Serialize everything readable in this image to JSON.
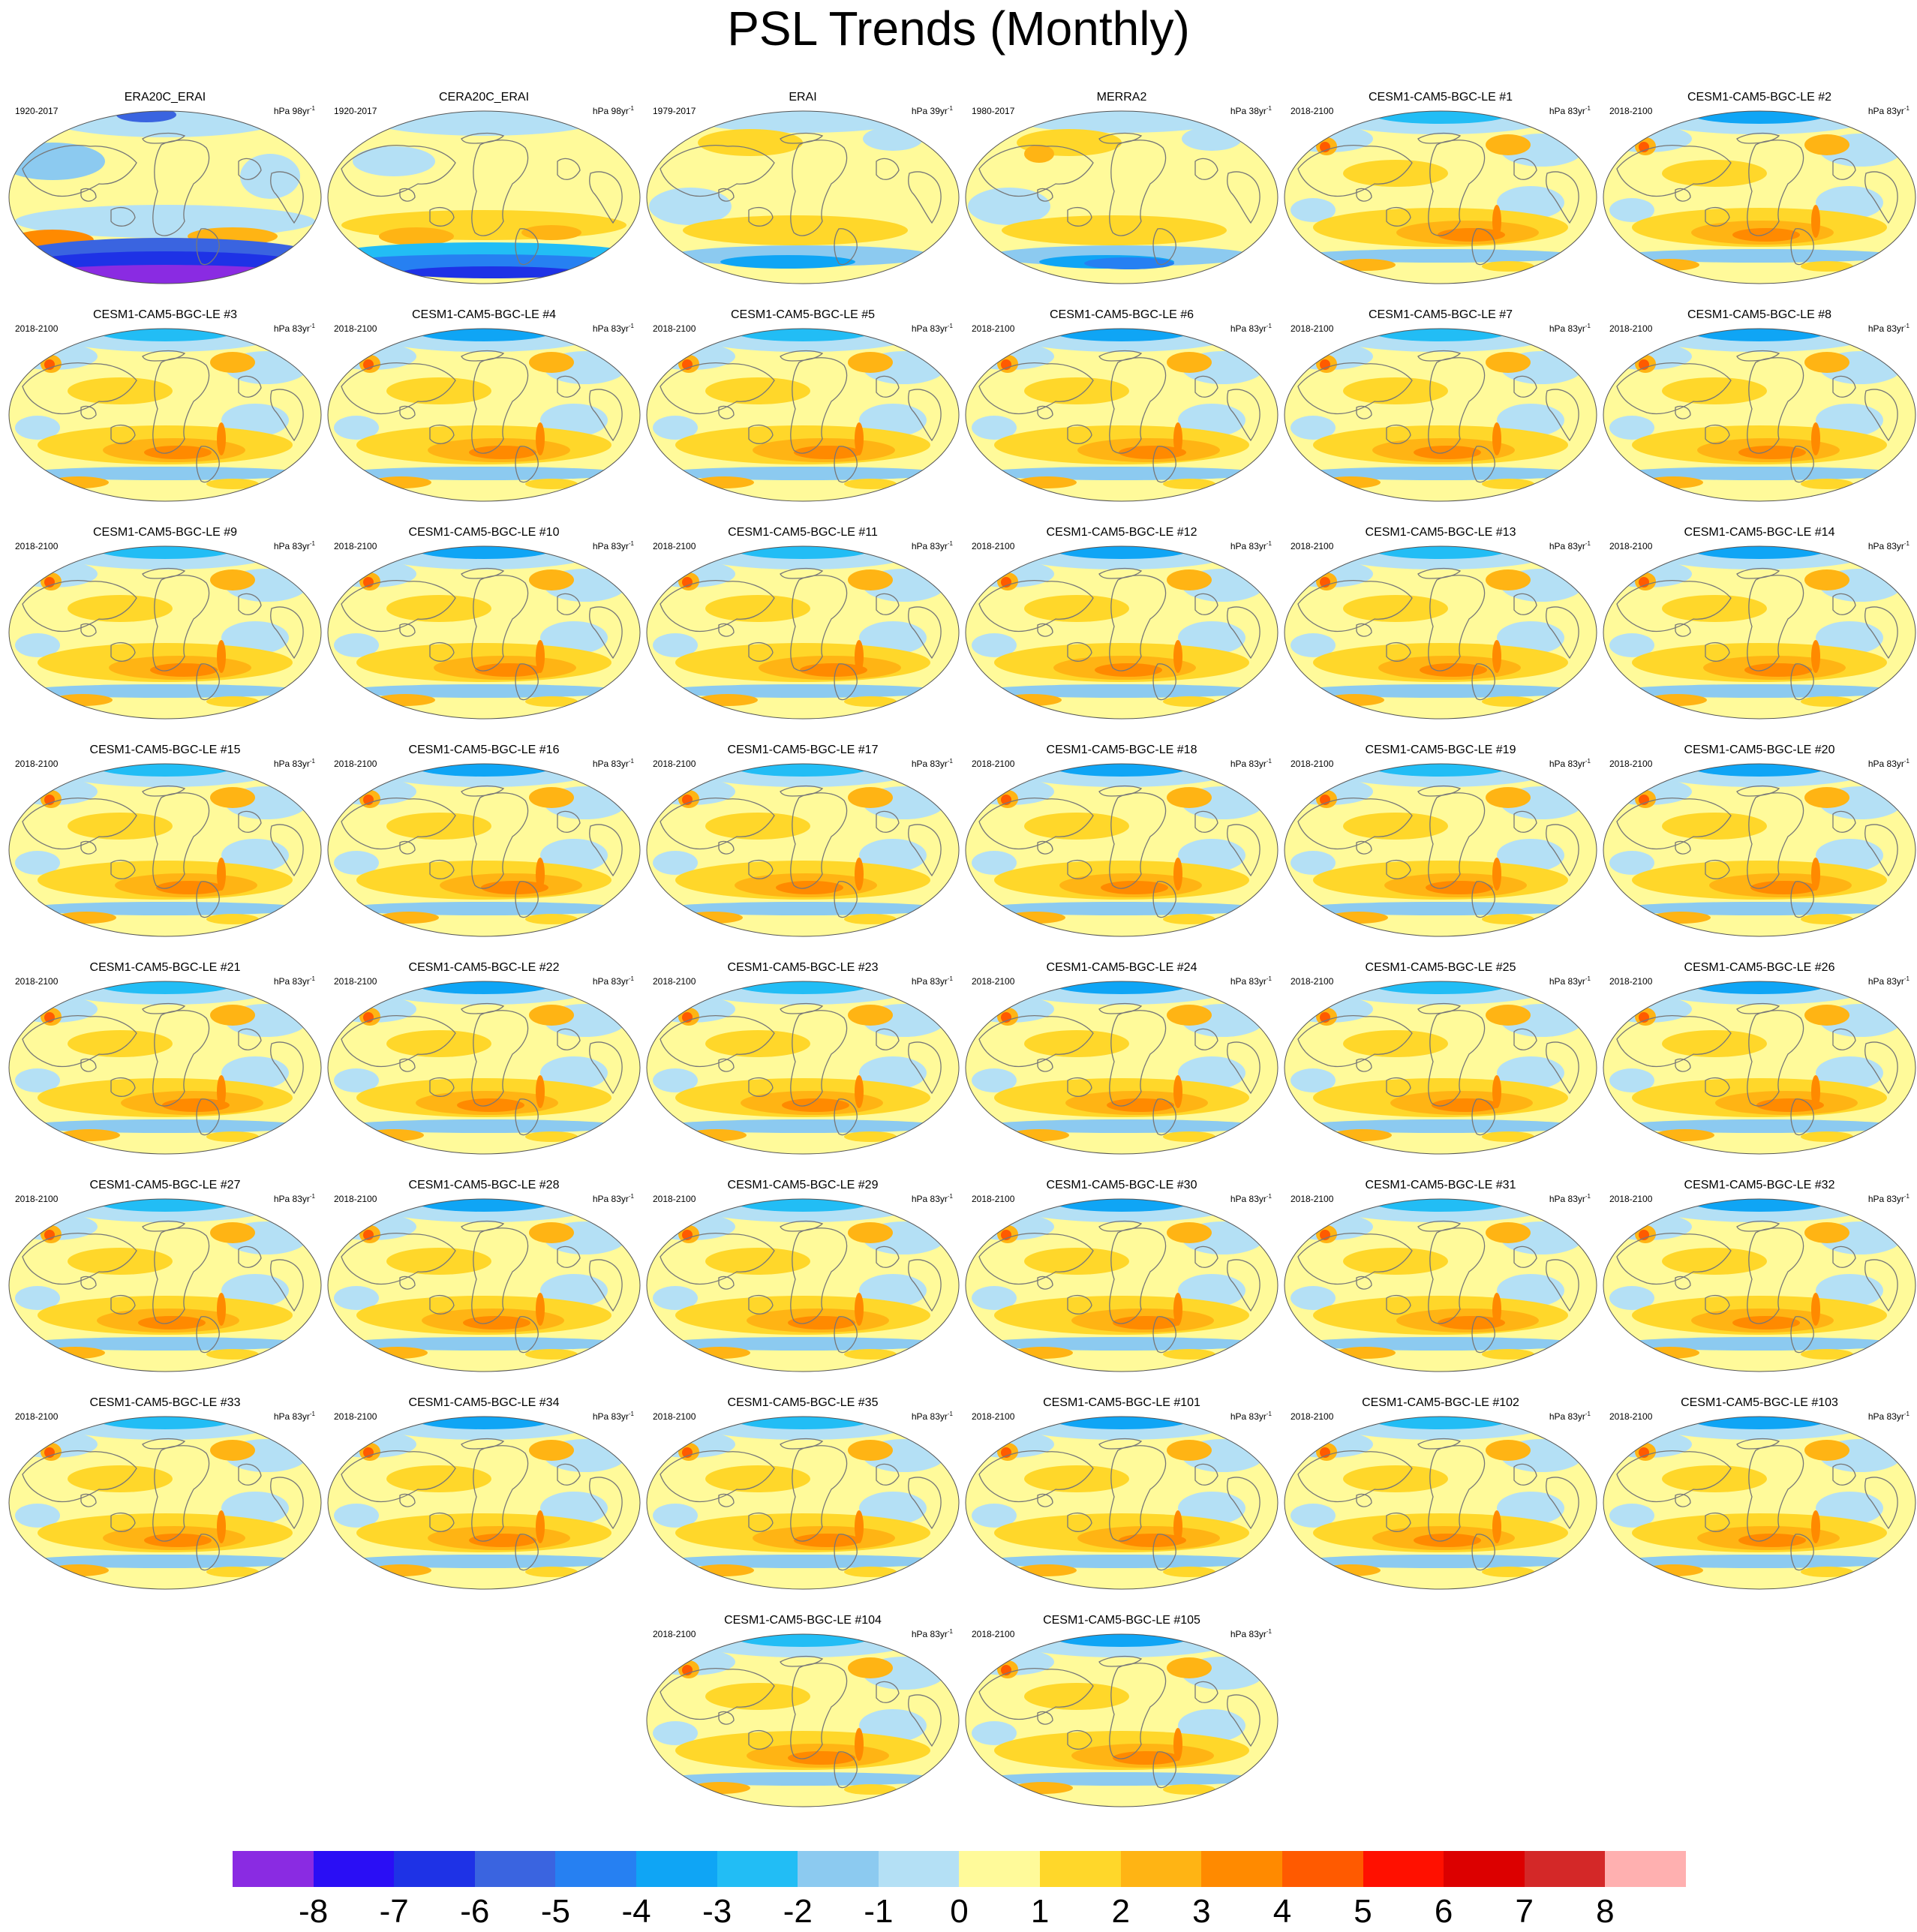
{
  "title": "PSL Trends (Monthly)",
  "panels": [
    {
      "title": "ERA20C_ERAI",
      "period": "1920-2017",
      "units": "hPa 98yr",
      "units_exp": "-1",
      "pattern": "era20c"
    },
    {
      "title": "CERA20C_ERAI",
      "period": "1920-2017",
      "units": "hPa 98yr",
      "units_exp": "-1",
      "pattern": "cera20c"
    },
    {
      "title": "ERAI",
      "period": "1979-2017",
      "units": "hPa 39yr",
      "units_exp": "-1",
      "pattern": "obs"
    },
    {
      "title": "MERRA2",
      "period": "1980-2017",
      "units": "hPa 38yr",
      "units_exp": "-1",
      "pattern": "obs"
    },
    {
      "title": "CESM1-CAM5-BGC-LE #1",
      "period": "2018-2100",
      "units": "hPa 83yr",
      "units_exp": "-1",
      "pattern": "model"
    },
    {
      "title": "CESM1-CAM5-BGC-LE #2",
      "period": "2018-2100",
      "units": "hPa 83yr",
      "units_exp": "-1",
      "pattern": "model"
    },
    {
      "title": "CESM1-CAM5-BGC-LE #3",
      "period": "2018-2100",
      "units": "hPa 83yr",
      "units_exp": "-1",
      "pattern": "model"
    },
    {
      "title": "CESM1-CAM5-BGC-LE #4",
      "period": "2018-2100",
      "units": "hPa 83yr",
      "units_exp": "-1",
      "pattern": "model"
    },
    {
      "title": "CESM1-CAM5-BGC-LE #5",
      "period": "2018-2100",
      "units": "hPa 83yr",
      "units_exp": "-1",
      "pattern": "model"
    },
    {
      "title": "CESM1-CAM5-BGC-LE #6",
      "period": "2018-2100",
      "units": "hPa 83yr",
      "units_exp": "-1",
      "pattern": "model"
    },
    {
      "title": "CESM1-CAM5-BGC-LE #7",
      "period": "2018-2100",
      "units": "hPa 83yr",
      "units_exp": "-1",
      "pattern": "model"
    },
    {
      "title": "CESM1-CAM5-BGC-LE #8",
      "period": "2018-2100",
      "units": "hPa 83yr",
      "units_exp": "-1",
      "pattern": "model"
    },
    {
      "title": "CESM1-CAM5-BGC-LE #9",
      "period": "2018-2100",
      "units": "hPa 83yr",
      "units_exp": "-1",
      "pattern": "model"
    },
    {
      "title": "CESM1-CAM5-BGC-LE #10",
      "period": "2018-2100",
      "units": "hPa 83yr",
      "units_exp": "-1",
      "pattern": "model"
    },
    {
      "title": "CESM1-CAM5-BGC-LE #11",
      "period": "2018-2100",
      "units": "hPa 83yr",
      "units_exp": "-1",
      "pattern": "model"
    },
    {
      "title": "CESM1-CAM5-BGC-LE #12",
      "period": "2018-2100",
      "units": "hPa 83yr",
      "units_exp": "-1",
      "pattern": "model"
    },
    {
      "title": "CESM1-CAM5-BGC-LE #13",
      "period": "2018-2100",
      "units": "hPa 83yr",
      "units_exp": "-1",
      "pattern": "model"
    },
    {
      "title": "CESM1-CAM5-BGC-LE #14",
      "period": "2018-2100",
      "units": "hPa 83yr",
      "units_exp": "-1",
      "pattern": "model"
    },
    {
      "title": "CESM1-CAM5-BGC-LE #15",
      "period": "2018-2100",
      "units": "hPa 83yr",
      "units_exp": "-1",
      "pattern": "model"
    },
    {
      "title": "CESM1-CAM5-BGC-LE #16",
      "period": "2018-2100",
      "units": "hPa 83yr",
      "units_exp": "-1",
      "pattern": "model"
    },
    {
      "title": "CESM1-CAM5-BGC-LE #17",
      "period": "2018-2100",
      "units": "hPa 83yr",
      "units_exp": "-1",
      "pattern": "model"
    },
    {
      "title": "CESM1-CAM5-BGC-LE #18",
      "period": "2018-2100",
      "units": "hPa 83yr",
      "units_exp": "-1",
      "pattern": "model"
    },
    {
      "title": "CESM1-CAM5-BGC-LE #19",
      "period": "2018-2100",
      "units": "hPa 83yr",
      "units_exp": "-1",
      "pattern": "model"
    },
    {
      "title": "CESM1-CAM5-BGC-LE #20",
      "period": "2018-2100",
      "units": "hPa 83yr",
      "units_exp": "-1",
      "pattern": "model"
    },
    {
      "title": "CESM1-CAM5-BGC-LE #21",
      "period": "2018-2100",
      "units": "hPa 83yr",
      "units_exp": "-1",
      "pattern": "model"
    },
    {
      "title": "CESM1-CAM5-BGC-LE #22",
      "period": "2018-2100",
      "units": "hPa 83yr",
      "units_exp": "-1",
      "pattern": "model"
    },
    {
      "title": "CESM1-CAM5-BGC-LE #23",
      "period": "2018-2100",
      "units": "hPa 83yr",
      "units_exp": "-1",
      "pattern": "model"
    },
    {
      "title": "CESM1-CAM5-BGC-LE #24",
      "period": "2018-2100",
      "units": "hPa 83yr",
      "units_exp": "-1",
      "pattern": "model"
    },
    {
      "title": "CESM1-CAM5-BGC-LE #25",
      "period": "2018-2100",
      "units": "hPa 83yr",
      "units_exp": "-1",
      "pattern": "model"
    },
    {
      "title": "CESM1-CAM5-BGC-LE #26",
      "period": "2018-2100",
      "units": "hPa 83yr",
      "units_exp": "-1",
      "pattern": "model"
    },
    {
      "title": "CESM1-CAM5-BGC-LE #27",
      "period": "2018-2100",
      "units": "hPa 83yr",
      "units_exp": "-1",
      "pattern": "model"
    },
    {
      "title": "CESM1-CAM5-BGC-LE #28",
      "period": "2018-2100",
      "units": "hPa 83yr",
      "units_exp": "-1",
      "pattern": "model"
    },
    {
      "title": "CESM1-CAM5-BGC-LE #29",
      "period": "2018-2100",
      "units": "hPa 83yr",
      "units_exp": "-1",
      "pattern": "model"
    },
    {
      "title": "CESM1-CAM5-BGC-LE #30",
      "period": "2018-2100",
      "units": "hPa 83yr",
      "units_exp": "-1",
      "pattern": "model"
    },
    {
      "title": "CESM1-CAM5-BGC-LE #31",
      "period": "2018-2100",
      "units": "hPa 83yr",
      "units_exp": "-1",
      "pattern": "model"
    },
    {
      "title": "CESM1-CAM5-BGC-LE #32",
      "period": "2018-2100",
      "units": "hPa 83yr",
      "units_exp": "-1",
      "pattern": "model"
    },
    {
      "title": "CESM1-CAM5-BGC-LE #33",
      "period": "2018-2100",
      "units": "hPa 83yr",
      "units_exp": "-1",
      "pattern": "model"
    },
    {
      "title": "CESM1-CAM5-BGC-LE #34",
      "period": "2018-2100",
      "units": "hPa 83yr",
      "units_exp": "-1",
      "pattern": "model"
    },
    {
      "title": "CESM1-CAM5-BGC-LE #35",
      "period": "2018-2100",
      "units": "hPa 83yr",
      "units_exp": "-1",
      "pattern": "model"
    },
    {
      "title": "CESM1-CAM5-BGC-LE #101",
      "period": "2018-2100",
      "units": "hPa 83yr",
      "units_exp": "-1",
      "pattern": "model"
    },
    {
      "title": "CESM1-CAM5-BGC-LE #102",
      "period": "2018-2100",
      "units": "hPa 83yr",
      "units_exp": "-1",
      "pattern": "model"
    },
    {
      "title": "CESM1-CAM5-BGC-LE #103",
      "period": "2018-2100",
      "units": "hPa 83yr",
      "units_exp": "-1",
      "pattern": "model"
    },
    {
      "title": "CESM1-CAM5-BGC-LE #104",
      "period": "2018-2100",
      "units": "hPa 83yr",
      "units_exp": "-1",
      "pattern": "model"
    },
    {
      "title": "CESM1-CAM5-BGC-LE #105",
      "period": "2018-2100",
      "units": "hPa 83yr",
      "units_exp": "-1",
      "pattern": "model"
    }
  ],
  "colorbar": {
    "colors": [
      "#8a2be2",
      "#2a0ef5",
      "#1e32e6",
      "#3a64e0",
      "#2680f2",
      "#0fa5f5",
      "#22bdf5",
      "#8ccaf0",
      "#b4e0f5",
      "#fffa9a",
      "#ffd72a",
      "#ffb414",
      "#ff8a00",
      "#ff5a00",
      "#ff1000",
      "#dc0000",
      "#d42828",
      "#ffb0b0"
    ],
    "labels": [
      "-8",
      "-7",
      "-6",
      "-5",
      "-4",
      "-3",
      "-2",
      "-1",
      "0",
      "1",
      "2",
      "3",
      "4",
      "5",
      "6",
      "7",
      "8"
    ]
  },
  "style": {
    "background": "#fffa9a",
    "continent_fill": "#fffa9a",
    "coastline": "#777777"
  }
}
